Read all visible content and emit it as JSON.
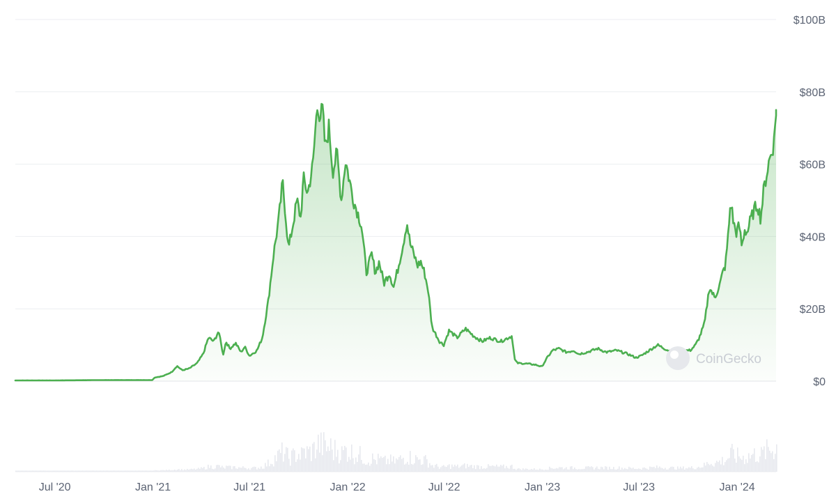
{
  "chart_data": {
    "type": "area",
    "title": "",
    "xlabel": "",
    "ylabel": "",
    "x_range": [
      "2020-04-18",
      "2024-03-14"
    ],
    "ylim": [
      0,
      100
    ],
    "y_unit": "billion USD",
    "y_ticks": [
      {
        "value": 0,
        "label": "$0"
      },
      {
        "value": 20,
        "label": "$20B"
      },
      {
        "value": 40,
        "label": "$40B"
      },
      {
        "value": 60,
        "label": "$60B"
      },
      {
        "value": 80,
        "label": "$80B"
      },
      {
        "value": 100,
        "label": "$100B"
      }
    ],
    "x_ticks": [
      {
        "date": "2020-07-01",
        "label": "Jul '20"
      },
      {
        "date": "2021-01-01",
        "label": "Jan '21"
      },
      {
        "date": "2021-07-01",
        "label": "Jul '21"
      },
      {
        "date": "2022-01-01",
        "label": "Jan '22"
      },
      {
        "date": "2022-07-01",
        "label": "Jul '22"
      },
      {
        "date": "2023-01-01",
        "label": "Jan '23"
      },
      {
        "date": "2023-07-01",
        "label": "Jul '23"
      },
      {
        "date": "2024-01-01",
        "label": "Jan '24"
      }
    ],
    "grid": true,
    "line_color": "#4caf50",
    "volume_color": "#e7e8ee",
    "watermark": "CoinGecko",
    "series": [
      {
        "name": "",
        "points": [
          [
            "2020-04-18",
            0.2
          ],
          [
            "2020-07-01",
            0.2
          ],
          [
            "2020-10-01",
            0.3
          ],
          [
            "2020-12-31",
            0.3
          ],
          [
            "2021-01-04",
            1.0
          ],
          [
            "2021-01-20",
            1.4
          ],
          [
            "2021-02-05",
            2.5
          ],
          [
            "2021-02-15",
            4.2
          ],
          [
            "2021-02-25",
            3.0
          ],
          [
            "2021-03-10",
            3.5
          ],
          [
            "2021-03-25",
            5.0
          ],
          [
            "2021-04-05",
            7.5
          ],
          [
            "2021-04-15",
            12.0
          ],
          [
            "2021-04-25",
            11.0
          ],
          [
            "2021-05-03",
            13.5
          ],
          [
            "2021-05-08",
            11.5
          ],
          [
            "2021-05-12",
            7.0
          ],
          [
            "2021-05-18",
            11.0
          ],
          [
            "2021-05-25",
            9.0
          ],
          [
            "2021-06-05",
            10.5
          ],
          [
            "2021-06-15",
            8.0
          ],
          [
            "2021-06-22",
            9.5
          ],
          [
            "2021-07-01",
            7.0
          ],
          [
            "2021-07-15",
            8.5
          ],
          [
            "2021-07-25",
            12.0
          ],
          [
            "2021-08-05",
            22.0
          ],
          [
            "2021-08-15",
            35.0
          ],
          [
            "2021-08-25",
            45.0
          ],
          [
            "2021-09-01",
            55.0
          ],
          [
            "2021-09-06",
            47.0
          ],
          [
            "2021-09-12",
            36.5
          ],
          [
            "2021-09-20",
            43.0
          ],
          [
            "2021-09-28",
            50.0
          ],
          [
            "2021-10-05",
            45.0
          ],
          [
            "2021-10-10",
            56.0
          ],
          [
            "2021-10-18",
            52.0
          ],
          [
            "2021-10-28",
            60.0
          ],
          [
            "2021-11-02",
            71.0
          ],
          [
            "2021-11-06",
            77.0
          ],
          [
            "2021-11-10",
            73.0
          ],
          [
            "2021-11-15",
            75.0
          ],
          [
            "2021-11-20",
            64.0
          ],
          [
            "2021-11-27",
            70.5
          ],
          [
            "2021-12-04",
            58.0
          ],
          [
            "2021-12-12",
            63.0
          ],
          [
            "2021-12-20",
            50.0
          ],
          [
            "2021-12-28",
            61.0
          ],
          [
            "2022-01-05",
            55.0
          ],
          [
            "2022-01-12",
            50.0
          ],
          [
            "2022-01-21",
            46.0
          ],
          [
            "2022-01-27",
            43.0
          ],
          [
            "2022-02-05",
            30.0
          ],
          [
            "2022-02-15",
            35.0
          ],
          [
            "2022-02-22",
            30.0
          ],
          [
            "2022-03-01",
            33.0
          ],
          [
            "2022-03-10",
            27.0
          ],
          [
            "2022-03-20",
            30.0
          ],
          [
            "2022-03-28",
            26.0
          ],
          [
            "2022-04-05",
            31.0
          ],
          [
            "2022-04-15",
            38.0
          ],
          [
            "2022-04-22",
            44.0
          ],
          [
            "2022-04-28",
            38.0
          ],
          [
            "2022-05-05",
            35.0
          ],
          [
            "2022-05-12",
            32.0
          ],
          [
            "2022-05-18",
            33.0
          ],
          [
            "2022-05-25",
            30.0
          ],
          [
            "2022-06-01",
            25.0
          ],
          [
            "2022-06-08",
            15.0
          ],
          [
            "2022-06-15",
            13.0
          ],
          [
            "2022-06-22",
            11.0
          ],
          [
            "2022-06-30",
            10.0
          ],
          [
            "2022-07-10",
            14.0
          ],
          [
            "2022-07-25",
            12.0
          ],
          [
            "2022-08-10",
            14.5
          ],
          [
            "2022-08-25",
            12.5
          ],
          [
            "2022-09-10",
            11.0
          ],
          [
            "2022-09-25",
            12.0
          ],
          [
            "2022-10-15",
            11.0
          ],
          [
            "2022-11-05",
            12.5
          ],
          [
            "2022-11-10",
            6.0
          ],
          [
            "2022-11-15",
            5.0
          ],
          [
            "2022-12-05",
            4.8
          ],
          [
            "2022-12-20",
            4.5
          ],
          [
            "2022-12-31",
            4.0
          ],
          [
            "2023-01-10",
            6.5
          ],
          [
            "2023-01-20",
            8.5
          ],
          [
            "2023-02-01",
            9.0
          ],
          [
            "2023-02-15",
            8.0
          ],
          [
            "2023-03-01",
            8.5
          ],
          [
            "2023-03-10",
            7.5
          ],
          [
            "2023-03-25",
            8.0
          ],
          [
            "2023-04-15",
            9.0
          ],
          [
            "2023-05-01",
            8.0
          ],
          [
            "2023-05-20",
            8.5
          ],
          [
            "2023-06-10",
            7.5
          ],
          [
            "2023-06-25",
            6.5
          ],
          [
            "2023-07-05",
            7.0
          ],
          [
            "2023-07-20",
            8.5
          ],
          [
            "2023-08-05",
            10.0
          ],
          [
            "2023-08-18",
            9.0
          ],
          [
            "2023-08-25",
            8.5
          ],
          [
            "2023-09-05",
            8.0
          ],
          [
            "2023-09-15",
            7.5
          ],
          [
            "2023-09-25",
            8.5
          ],
          [
            "2023-10-05",
            8.5
          ],
          [
            "2023-10-15",
            10.0
          ],
          [
            "2023-10-22",
            12.0
          ],
          [
            "2023-11-01",
            16.0
          ],
          [
            "2023-11-10",
            26.0
          ],
          [
            "2023-11-20",
            23.0
          ],
          [
            "2023-11-30",
            27.0
          ],
          [
            "2023-12-05",
            30.0
          ],
          [
            "2023-12-10",
            32.0
          ],
          [
            "2023-12-15",
            40.0
          ],
          [
            "2023-12-20",
            50.0
          ],
          [
            "2023-12-25",
            44.0
          ],
          [
            "2023-12-30",
            41.0
          ],
          [
            "2024-01-05",
            43.0
          ],
          [
            "2024-01-10",
            37.0
          ],
          [
            "2024-01-15",
            42.0
          ],
          [
            "2024-01-20",
            41.0
          ],
          [
            "2024-01-25",
            44.0
          ],
          [
            "2024-02-01",
            47.0
          ],
          [
            "2024-02-08",
            49.0
          ],
          [
            "2024-02-14",
            45.0
          ],
          [
            "2024-02-20",
            53.0
          ],
          [
            "2024-02-25",
            57.0
          ],
          [
            "2024-03-01",
            61.0
          ],
          [
            "2024-03-05",
            63.0
          ],
          [
            "2024-03-10",
            66.0
          ],
          [
            "2024-03-14",
            75.0
          ]
        ]
      }
    ]
  }
}
